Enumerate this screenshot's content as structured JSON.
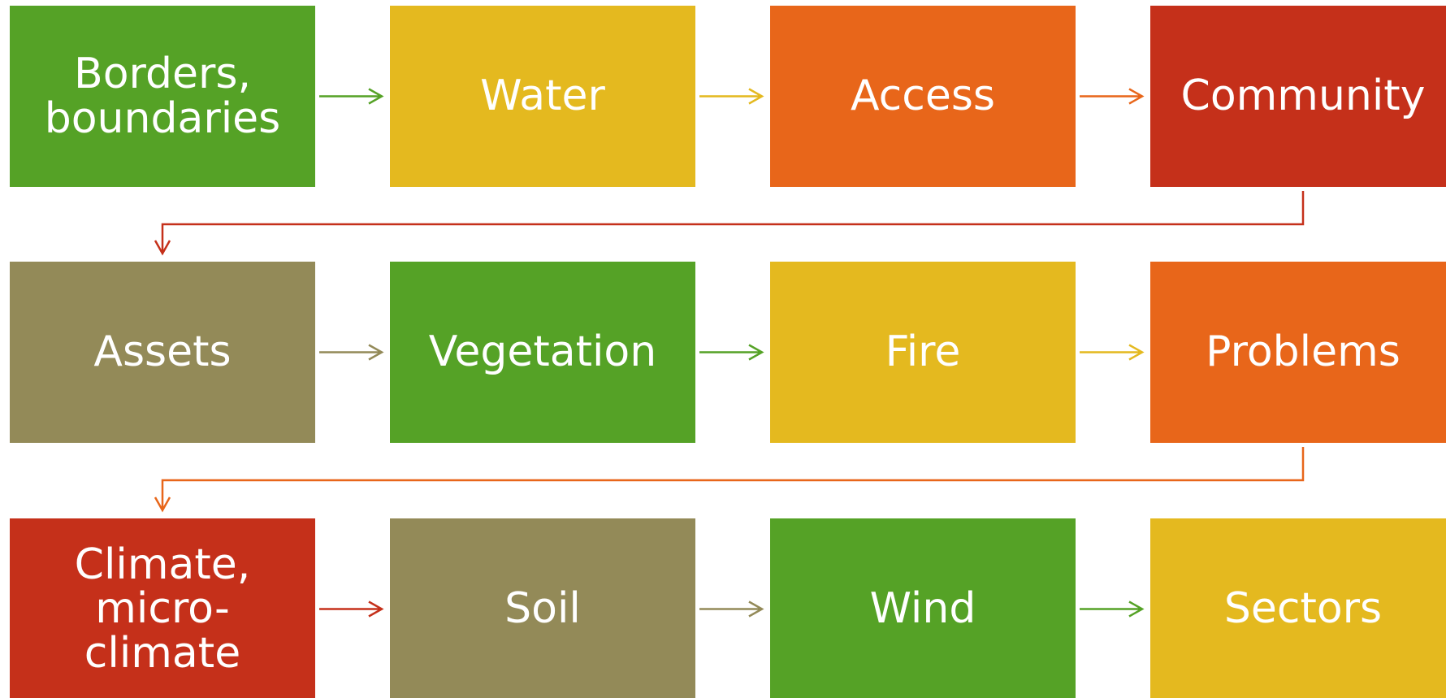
{
  "nodes": [
    {
      "label": "Borders, boundaries"
    },
    {
      "label": "Water"
    },
    {
      "label": "Access"
    },
    {
      "label": "Community"
    },
    {
      "label": "Assets"
    },
    {
      "label": "Vegetation"
    },
    {
      "label": "Fire"
    },
    {
      "label": "Problems"
    },
    {
      "label": "Climate, micro-climate"
    },
    {
      "label": "Soil"
    },
    {
      "label": "Wind"
    },
    {
      "label": "Sectors"
    }
  ]
}
